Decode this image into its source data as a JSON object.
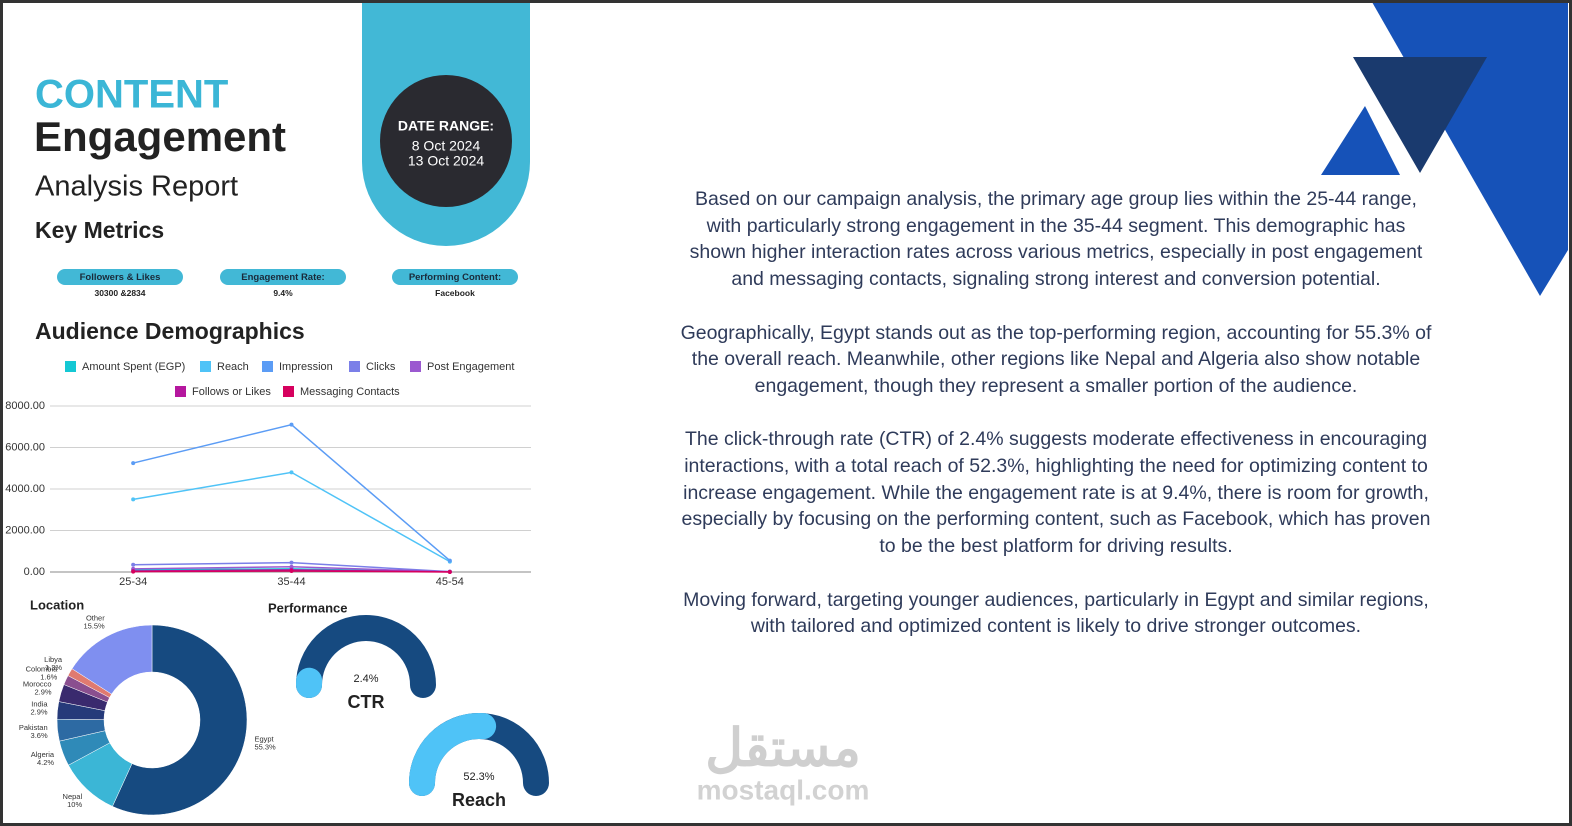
{
  "header": {
    "title_top": "CONTENT",
    "title_main": "Engagement",
    "subtitle": "Analysis Report"
  },
  "date_range": {
    "label": "DATE RANGE:",
    "start": "8 Oct 2024",
    "end": "13 Oct 2024"
  },
  "key_metrics": {
    "title": "Key Metrics",
    "items": [
      {
        "label": "Followers & Likes",
        "value": "30300 &2834"
      },
      {
        "label": "Engagement Rate:",
        "value": "9.4%"
      },
      {
        "label": "Performing Content:",
        "value": "Facebook"
      }
    ]
  },
  "chart_data": [
    {
      "type": "line",
      "title": "Audience Demographics",
      "categories": [
        "25-34",
        "35-44",
        "45-54"
      ],
      "ylim": [
        0,
        8000
      ],
      "yticks": [
        {
          "value": 0,
          "label": "0.00"
        },
        {
          "value": 2000,
          "label": "2000.00"
        },
        {
          "value": 4000,
          "label": "4000.00"
        },
        {
          "value": 6000,
          "label": "6000.00"
        },
        {
          "value": 8000,
          "label": "8000.00"
        }
      ],
      "grid": true,
      "series": [
        {
          "name": "Amount Spent (EGP)",
          "color": "#14c8d4",
          "values": [
            100,
            150,
            10
          ]
        },
        {
          "name": "Reach",
          "color": "#4fc3f7",
          "values": [
            3500,
            4800,
            500
          ]
        },
        {
          "name": "Impression",
          "color": "#5b9cf5",
          "values": [
            5250,
            7100,
            550
          ]
        },
        {
          "name": "Clicks",
          "color": "#7b7fe8",
          "values": [
            350,
            450,
            20
          ]
        },
        {
          "name": "Post Engagement",
          "color": "#9b59d0",
          "values": [
            150,
            250,
            10
          ]
        },
        {
          "name": "Follows or Likes",
          "color": "#b5179e",
          "values": [
            50,
            100,
            5
          ]
        },
        {
          "name": "Messaging Contacts",
          "color": "#d6005e",
          "values": [
            20,
            50,
            0
          ]
        }
      ]
    },
    {
      "type": "donut",
      "title": "Location",
      "categories": [
        "Egypt",
        "Nepal",
        "Algeria",
        "Pakistan",
        "India",
        "Morocco",
        "Colombia",
        "Libya",
        "Other"
      ],
      "values": [
        55.3,
        10,
        4.2,
        3.6,
        2.9,
        2.9,
        1.6,
        1.3,
        15.5
      ],
      "value_labels": [
        "55.3%",
        "10%",
        "4.2%",
        "3.6%",
        "2.9%",
        "2.9%",
        "1.6%",
        "1.3%",
        "15.5%"
      ],
      "colors": [
        "#164a80",
        "#3bb6d6",
        "#2f8ab8",
        "#2d6aa3",
        "#263a7a",
        "#3a2a6e",
        "#8a4f8f",
        "#e07a70",
        "#7f8ff0"
      ]
    },
    {
      "type": "gauge",
      "title": "Performance",
      "categories": [
        "CTR",
        "Reach"
      ],
      "values": [
        2.4,
        52.3
      ],
      "value_labels": [
        "2.4%",
        "52.3%"
      ],
      "ylim": [
        0,
        100
      ],
      "colors": [
        "#4fc3f7",
        "#164a80"
      ]
    }
  ],
  "paragraphs": [
    "Based on our campaign analysis, the primary age group lies within the 25-44 range, with particularly strong engagement in the 35-44 segment. This demographic has shown higher interaction rates across various metrics, especially in post engagement and messaging contacts, signaling strong interest and conversion potential.",
    "Geographically, Egypt stands out as the top-performing region, accounting for 55.3% of the overall reach. Meanwhile, other regions like Nepal and Algeria also show notable engagement, though they represent a smaller portion of the audience.",
    "The click-through rate (CTR) of 2.4% suggests moderate effectiveness in encouraging interactions, with a total reach of 52.3%, highlighting the need for optimizing content to increase engagement. While the engagement rate is at 9.4%, there is room for growth, especially by focusing on the performing content, such as Facebook, which has proven to be the best platform for driving results.",
    "Moving forward, targeting younger audiences, particularly in Egypt and similar regions, with tailored and optimized content is likely to drive stronger outcomes."
  ],
  "watermark": {
    "arabic": "مستقل",
    "latin": "mostaql.com"
  }
}
